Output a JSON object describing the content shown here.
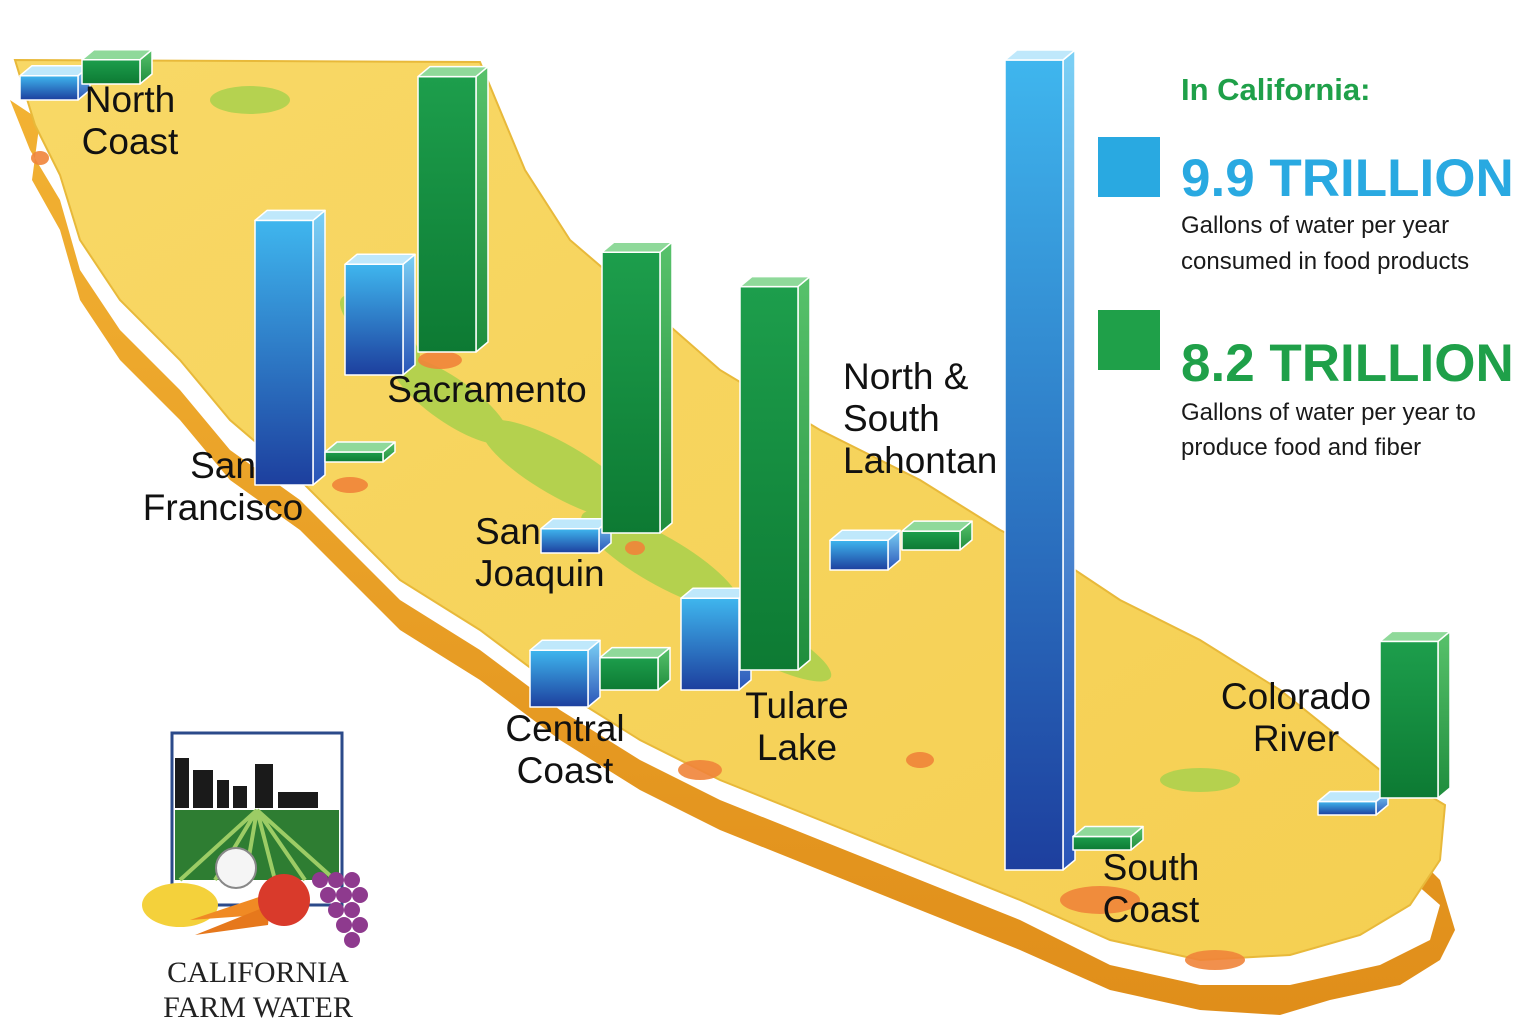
{
  "chart_data": {
    "type": "bar",
    "series": [
      {
        "key": "consumed",
        "color": "#29a9e1"
      },
      {
        "key": "produced",
        "color": "#1fa049"
      }
    ],
    "regions": [
      {
        "key": "north_coast",
        "name_lines": [
          "North",
          "Coast"
        ],
        "consumed": 0.09,
        "produced": 0.09
      },
      {
        "key": "sacramento",
        "name_lines": [
          "Sacramento"
        ],
        "consumed": 0.41,
        "produced": 1.02
      },
      {
        "key": "san_francisco",
        "name_lines": [
          "San",
          "Francisco"
        ],
        "consumed": 0.98,
        "produced": 0.02
      },
      {
        "key": "san_joaquin",
        "name_lines": [
          "San",
          "Joaquin"
        ],
        "consumed": 0.09,
        "produced": 1.04
      },
      {
        "key": "central_coast",
        "name_lines": [
          "Central",
          "Coast"
        ],
        "consumed": 0.21,
        "produced": 0.12
      },
      {
        "key": "tulare_lake",
        "name_lines": [
          "Tulare",
          "Lake"
        ],
        "consumed": 0.34,
        "produced": 1.42
      },
      {
        "key": "lahontan",
        "name_lines": [
          "North &",
          "South",
          "Lahontan"
        ],
        "consumed": 0.11,
        "produced": 0.07
      },
      {
        "key": "south_coast",
        "name_lines": [
          "South",
          "Coast"
        ],
        "consumed": 3.0,
        "produced": 0.05
      },
      {
        "key": "colorado_river",
        "name_lines": [
          "Colorado",
          "River"
        ],
        "consumed": 0.05,
        "produced": 0.58
      }
    ]
  },
  "legend": {
    "heading": "In California:",
    "items": [
      {
        "value": "9.9 TRILLION",
        "line1": "Gallons of water per year",
        "line2": "consumed in food products",
        "color": "#29a9e1"
      },
      {
        "value": "8.2 TRILLION",
        "line1": "Gallons of water per year to",
        "line2": "produce food and fiber",
        "color": "#1fa049"
      }
    ]
  },
  "logo": {
    "line1": "CALIFORNIA",
    "line2": "FARM WATER"
  }
}
